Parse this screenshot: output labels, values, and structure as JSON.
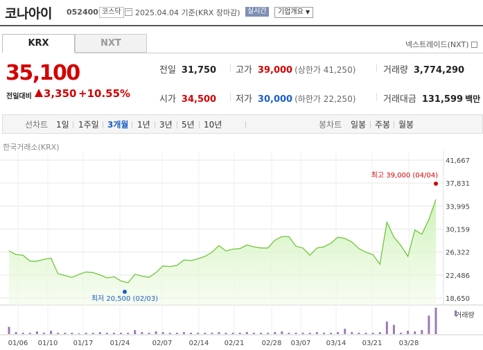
{
  "stock": {
    "name": "코나아이",
    "code": "052400",
    "market": "코스닥",
    "date": "2025.04.04",
    "basis": "기준(KRX 장마감)",
    "realtime": "실시간",
    "company_info": "기업개요"
  },
  "tabs": [
    "KRX",
    "NXT"
  ],
  "nxt_link": "넥스트레이드(NXT)",
  "price": {
    "current": "35,100",
    "change_label": "전일대비",
    "change": "3,350",
    "change_pct": "+10.55%"
  },
  "stats": {
    "prev_label": "전일",
    "prev": "31,750",
    "high_label": "고가",
    "high": "39,000",
    "upper_limit": "(상한가 41,250)",
    "volume_label": "거래량",
    "volume": "3,774,290",
    "open_label": "시가",
    "open": "34,500",
    "low_label": "저가",
    "low": "30,000",
    "lower_limit": "(하한가 22,250)",
    "amount_label": "거래대금",
    "amount": "131,599",
    "amount_unit": "백만"
  },
  "period_bar": {
    "line_label": "선차트",
    "line_items": [
      "1일",
      "1주일",
      "3개월",
      "1년",
      "3년",
      "5년",
      "10년"
    ],
    "selected": "3개월",
    "candle_label": "봉차트",
    "candle_items": [
      "일봉",
      "주봉",
      "월봉"
    ]
  },
  "colors": {
    "up": "#d40000",
    "down": "#1b5fc6",
    "line": "#6cc63a",
    "volume": "#9a78b8"
  },
  "chart_data": {
    "type": "area",
    "source": "한국거래소(KRX)",
    "y_ticks": [
      41667,
      37831,
      33995,
      30159,
      26322,
      22486,
      18650
    ],
    "ylim": [
      18650,
      41667
    ],
    "x_ticks": [
      "01/06",
      "01/10",
      "01/17",
      "01/24",
      "02/07",
      "02/14",
      "02/21",
      "02/28",
      "03/07",
      "03/14",
      "03/21",
      "03/28"
    ],
    "max_label": "최고 39,000 (04/04)",
    "min_label": "최저 20,500 (02/03)",
    "max": 39000,
    "min": 20500,
    "volume_label": "거래량",
    "values": [
      26500,
      25900,
      25800,
      24800,
      24800,
      25100,
      25300,
      22700,
      22400,
      22100,
      22600,
      23000,
      22900,
      22500,
      22000,
      22200,
      21500,
      21200,
      22600,
      22300,
      22100,
      22900,
      24000,
      23900,
      24100,
      25000,
      24900,
      25200,
      25600,
      26300,
      27400,
      26500,
      26800,
      26900,
      27500,
      27200,
      27000,
      27000,
      28300,
      28900,
      28900,
      27300,
      27000,
      25800,
      27000,
      27200,
      27800,
      28800,
      28600,
      28000,
      26900,
      26300,
      25900,
      24300,
      31300,
      28800,
      27400,
      25600,
      30000,
      29300,
      31750,
      35100
    ],
    "volume": [
      11,
      3,
      2,
      2,
      4,
      2,
      5,
      2,
      2,
      2,
      1,
      2,
      2,
      3,
      2,
      2,
      2,
      2,
      6,
      3,
      2,
      4,
      3,
      2,
      2,
      3,
      2,
      2,
      2,
      2,
      3,
      2,
      2,
      2,
      3,
      2,
      2,
      2,
      3,
      4,
      2,
      2,
      2,
      2,
      3,
      2,
      2,
      3,
      8,
      3,
      2,
      2,
      2,
      3,
      19,
      14,
      2,
      5,
      4,
      6,
      28,
      40
    ]
  }
}
